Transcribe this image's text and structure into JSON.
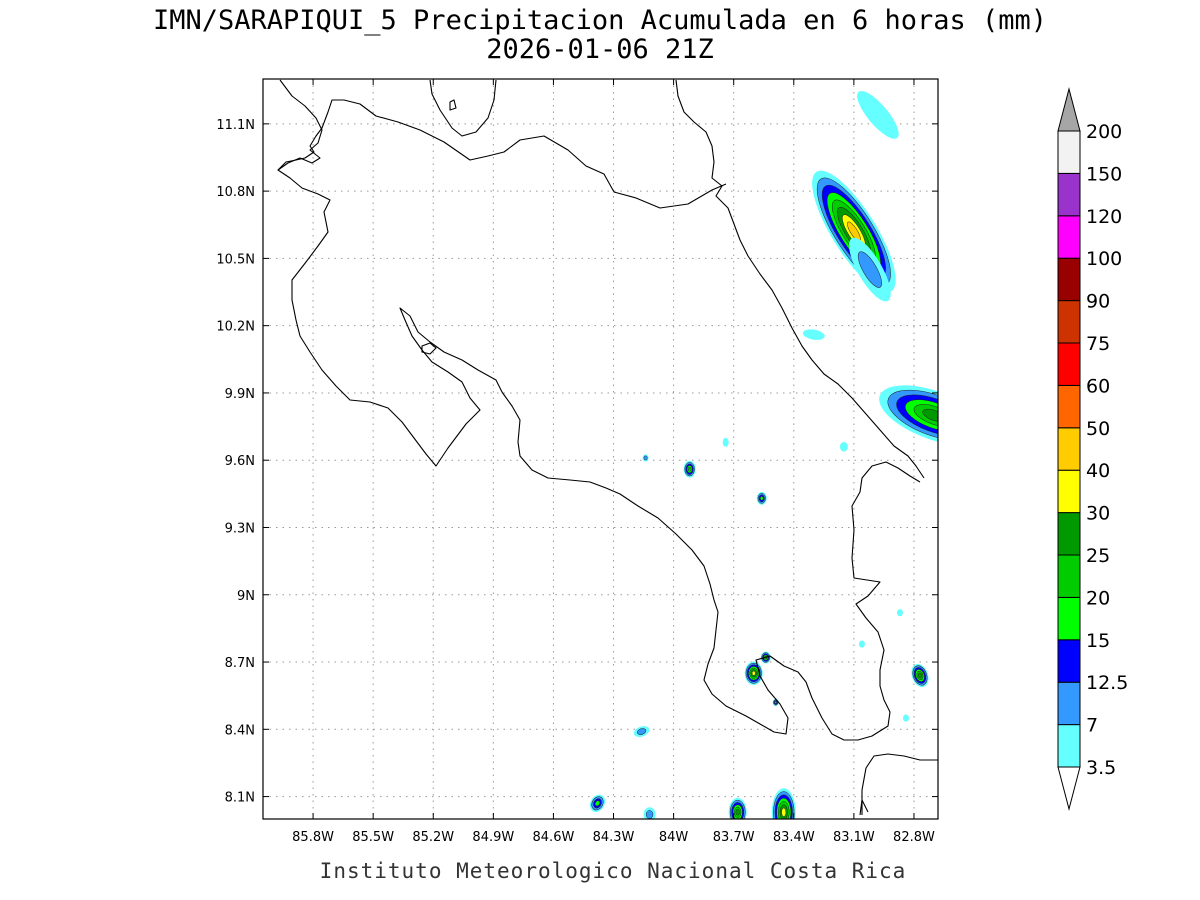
{
  "title": {
    "line1": "IMN/SARAPIQUI_5 Precipitacion Acumulada en 6 horas (mm)",
    "line2": "2026-01-06 21Z"
  },
  "footer": "Instituto Meteorologico Nacional Costa Rica",
  "map": {
    "lon_range": [
      -86.05,
      -82.68
    ],
    "lat_range": [
      8.0,
      11.3
    ],
    "lon_ticks": [
      {
        "value": -85.8,
        "label": "85.8W"
      },
      {
        "value": -85.5,
        "label": "85.5W"
      },
      {
        "value": -85.2,
        "label": "85.2W"
      },
      {
        "value": -84.9,
        "label": "84.9W"
      },
      {
        "value": -84.6,
        "label": "84.6W"
      },
      {
        "value": -84.3,
        "label": "84.3W"
      },
      {
        "value": -84.0,
        "label": "84W"
      },
      {
        "value": -83.7,
        "label": "83.7W"
      },
      {
        "value": -83.4,
        "label": "83.4W"
      },
      {
        "value": -83.1,
        "label": "83.1W"
      },
      {
        "value": -82.8,
        "label": "82.8W"
      }
    ],
    "lat_ticks": [
      {
        "value": 11.1,
        "label": "11.1N"
      },
      {
        "value": 10.8,
        "label": "10.8N"
      },
      {
        "value": 10.5,
        "label": "10.5N"
      },
      {
        "value": 10.2,
        "label": "10.2N"
      },
      {
        "value": 9.9,
        "label": "9.9N"
      },
      {
        "value": 9.6,
        "label": "9.6N"
      },
      {
        "value": 9.3,
        "label": "9.3N"
      },
      {
        "value": 9.0,
        "label": "9N"
      },
      {
        "value": 8.7,
        "label": "8.7N"
      },
      {
        "value": 8.4,
        "label": "8.4N"
      },
      {
        "value": 8.1,
        "label": "8.1N"
      }
    ],
    "grid": true
  },
  "colorbar": {
    "levels": [
      "3.5",
      "7",
      "12.5",
      "15",
      "20",
      "25",
      "30",
      "40",
      "50",
      "60",
      "75",
      "90",
      "100",
      "120",
      "150",
      "200"
    ],
    "colors": [
      "#66ffff",
      "#3399ff",
      "#0000ff",
      "#00ff00",
      "#00cc00",
      "#009900",
      "#ffff00",
      "#ffcc00",
      "#ff6600",
      "#ff0000",
      "#cc3300",
      "#990000",
      "#ff00ff",
      "#9933cc",
      "#f2f2f2"
    ],
    "over_color": "#a6a6a6",
    "under_color": "#ffffff"
  },
  "precip_cells": [
    {
      "lon": -83.1,
      "lat": 10.62,
      "peak": 40,
      "r": 0.11,
      "stretch": 3.2,
      "rot": -32
    },
    {
      "lon": -83.02,
      "lat": 10.45,
      "peak": 7,
      "r": 0.06,
      "stretch": 3.0,
      "rot": -30
    },
    {
      "lon": -82.98,
      "lat": 11.14,
      "peak": 3.5,
      "r": 0.05,
      "stretch": 3.0,
      "rot": -40
    },
    {
      "lon": -82.7,
      "lat": 9.8,
      "peak": 25,
      "r": 0.12,
      "stretch": 2.4,
      "rot": -70
    },
    {
      "lon": -83.92,
      "lat": 9.56,
      "peak": 20,
      "r": 0.03,
      "stretch": 1.4,
      "rot": 0
    },
    {
      "lon": -84.14,
      "lat": 9.61,
      "peak": 7,
      "r": 0.015,
      "stretch": 1.2,
      "rot": 0
    },
    {
      "lon": -83.56,
      "lat": 9.43,
      "peak": 15,
      "r": 0.025,
      "stretch": 1.3,
      "rot": 0
    },
    {
      "lon": -83.6,
      "lat": 8.65,
      "peak": 30,
      "r": 0.045,
      "stretch": 1.3,
      "rot": 0
    },
    {
      "lon": -83.54,
      "lat": 8.72,
      "peak": 20,
      "r": 0.025,
      "stretch": 1.2,
      "rot": 0
    },
    {
      "lon": -83.49,
      "lat": 8.52,
      "peak": 15,
      "r": 0.015,
      "stretch": 1.2,
      "rot": 0
    },
    {
      "lon": -82.77,
      "lat": 8.64,
      "peak": 25,
      "r": 0.04,
      "stretch": 1.5,
      "rot": -20
    },
    {
      "lon": -84.16,
      "lat": 8.39,
      "peak": 7,
      "r": 0.025,
      "stretch": 1.6,
      "rot": 70
    },
    {
      "lon": -84.38,
      "lat": 8.07,
      "peak": 15,
      "r": 0.035,
      "stretch": 1.3,
      "rot": 30
    },
    {
      "lon": -84.12,
      "lat": 8.02,
      "peak": 7,
      "r": 0.03,
      "stretch": 1.2,
      "rot": 0
    },
    {
      "lon": -83.68,
      "lat": 8.03,
      "peak": 25,
      "r": 0.045,
      "stretch": 1.6,
      "rot": 0
    },
    {
      "lon": -83.45,
      "lat": 8.03,
      "peak": 30,
      "r": 0.06,
      "stretch": 2.0,
      "rot": 0
    },
    {
      "lon": -83.15,
      "lat": 9.66,
      "peak": 3.5,
      "r": 0.02,
      "stretch": 1.2,
      "rot": 0
    },
    {
      "lon": -83.74,
      "lat": 9.68,
      "peak": 3.5,
      "r": 0.015,
      "stretch": 1.5,
      "rot": 0
    },
    {
      "lon": -83.3,
      "lat": 10.16,
      "peak": 3.5,
      "r": 0.025,
      "stretch": 2.2,
      "rot": -80
    },
    {
      "lon": -82.87,
      "lat": 8.92,
      "peak": 3.5,
      "r": 0.015,
      "stretch": 1.2,
      "rot": 0
    },
    {
      "lon": -83.06,
      "lat": 8.78,
      "peak": 3.5,
      "r": 0.015,
      "stretch": 1.2,
      "rot": 0
    },
    {
      "lon": -82.84,
      "lat": 8.45,
      "peak": 3.5,
      "r": 0.015,
      "stretch": 1.2,
      "rot": 0
    }
  ]
}
